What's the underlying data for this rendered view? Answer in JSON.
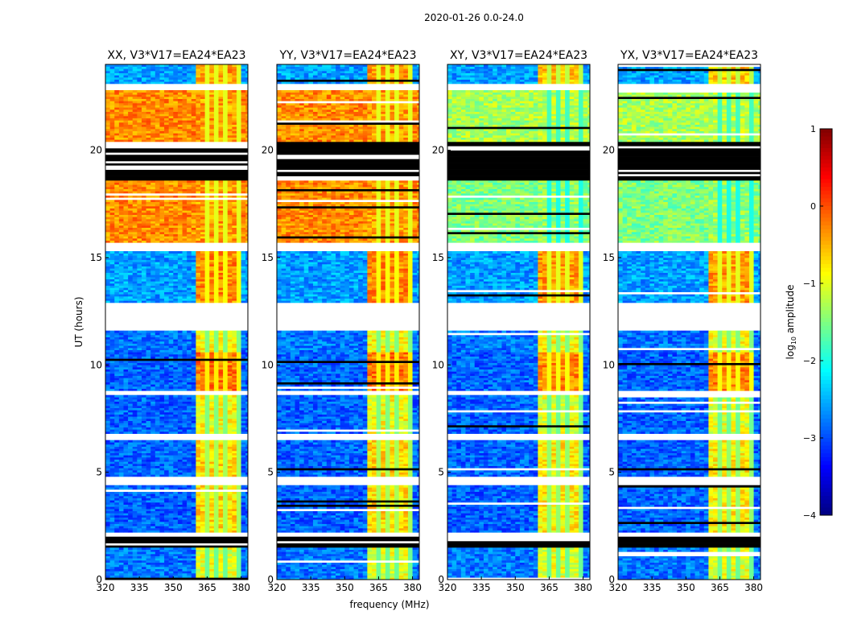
{
  "figure_title": "2020-01-26 0.0-24.0",
  "chart_data": {
    "type": "heatmap",
    "title": "2020-01-26 0.0-24.0",
    "xlabel": "frequency (MHz)",
    "ylabel": "UT (hours)",
    "xlim": [
      320,
      383
    ],
    "ylim": [
      0,
      24
    ],
    "xticks": [
      320,
      335,
      350,
      365,
      380
    ],
    "yticks": [
      0,
      5,
      10,
      15,
      20
    ],
    "colorbar": {
      "label_prefix": "log",
      "label_sub": "10",
      "label_suffix": " amplitude",
      "range": [
        -4,
        1
      ],
      "ticks": [
        1,
        0,
        -1,
        -2,
        -3,
        -4
      ],
      "colormap": "jet"
    },
    "rfi_band_mhz": [
      360,
      380
    ],
    "rfi_gaps_mhz": [
      364,
      368,
      373,
      378
    ],
    "panels": [
      {
        "title": "XX, V3*V17=EA24*EA23",
        "type": "parallel"
      },
      {
        "title": "YY, V3*V17=EA24*EA23",
        "type": "parallel"
      },
      {
        "title": "XY, V3*V17=EA24*EA23",
        "type": "cross"
      },
      {
        "title": "YX, V3*V17=EA24*EA23",
        "type": "cross"
      }
    ],
    "segments": [
      {
        "t0": 0.0,
        "t1": 1.5,
        "kind": "data",
        "parallel": -2.8,
        "cross": -2.8,
        "rfi_parallel": -1.0,
        "rfi_cross": -1.0
      },
      {
        "t0": 1.5,
        "t1": 2.0,
        "kind": "nodata"
      },
      {
        "t0": 2.0,
        "t1": 2.2,
        "kind": "flag"
      },
      {
        "t0": 2.2,
        "t1": 4.4,
        "kind": "data",
        "parallel": -2.9,
        "cross": -2.9,
        "rfi_parallel": -0.7,
        "rfi_cross": -0.8
      },
      {
        "t0": 4.4,
        "t1": 4.8,
        "kind": "flag"
      },
      {
        "t0": 4.8,
        "t1": 6.5,
        "kind": "data",
        "parallel": -2.9,
        "cross": -2.9,
        "rfi_parallel": -0.7,
        "rfi_cross": -0.8
      },
      {
        "t0": 6.5,
        "t1": 6.8,
        "kind": "flag"
      },
      {
        "t0": 6.8,
        "t1": 8.6,
        "kind": "data",
        "parallel": -2.9,
        "cross": -2.9,
        "rfi_parallel": -0.9,
        "rfi_cross": -1.0
      },
      {
        "t0": 8.6,
        "t1": 8.8,
        "kind": "flag"
      },
      {
        "t0": 8.8,
        "t1": 10.6,
        "kind": "data",
        "parallel": -2.9,
        "cross": -2.9,
        "rfi_parallel": -0.2,
        "rfi_cross": -0.3
      },
      {
        "t0": 10.6,
        "t1": 11.6,
        "kind": "data",
        "parallel": -2.8,
        "cross": -2.8,
        "rfi_parallel": -0.9,
        "rfi_cross": -0.9
      },
      {
        "t0": 11.6,
        "t1": 12.9,
        "kind": "flag"
      },
      {
        "t0": 12.9,
        "t1": 15.3,
        "kind": "data",
        "parallel": -2.6,
        "cross": -2.6,
        "rfi_parallel": -0.3,
        "rfi_cross": -0.4
      },
      {
        "t0": 15.3,
        "t1": 15.7,
        "kind": "flag"
      },
      {
        "t0": 15.7,
        "t1": 18.6,
        "kind": "data",
        "parallel": -0.3,
        "cross": -1.5,
        "rfi_parallel": -0.4,
        "rfi_cross": -1.4
      },
      {
        "t0": 18.6,
        "t1": 20.4,
        "kind": "nodata"
      },
      {
        "t0": 20.4,
        "t1": 22.8,
        "kind": "data",
        "parallel": -0.3,
        "cross": -1.3,
        "rfi_parallel": -0.4,
        "rfi_cross": -1.2
      },
      {
        "t0": 22.8,
        "t1": 23.1,
        "kind": "flag"
      },
      {
        "t0": 23.1,
        "t1": 24.0,
        "kind": "data",
        "parallel": -2.6,
        "cross": -2.6,
        "rfi_parallel": -0.4,
        "rfi_cross": -0.6
      }
    ]
  }
}
